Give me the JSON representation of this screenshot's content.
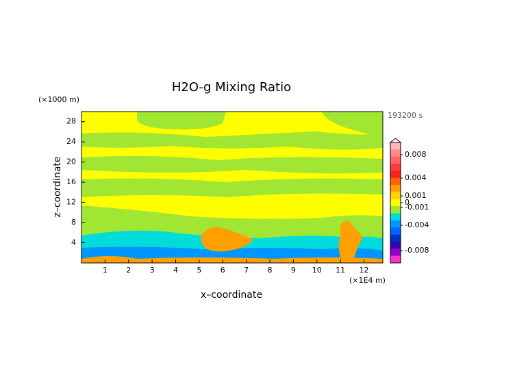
{
  "chart_data": {
    "type": "contour",
    "title": "H2O-g Mixing Ratio",
    "time_label": "193200 s",
    "x_label": "x–coordinate",
    "y_label": "z–coordinate",
    "x_unit": "(×1E4 m)",
    "y_unit": "(×1000 m)",
    "xlim": [
      0,
      12.8
    ],
    "ylim": [
      0,
      30
    ],
    "xticks": [
      1,
      2,
      3,
      4,
      5,
      6,
      7,
      8,
      9,
      10,
      11,
      12
    ],
    "yticks": [
      4,
      8,
      12,
      16,
      20,
      24,
      28
    ],
    "colorbar": {
      "colors": [
        "#ffb4b4",
        "#ff8c8c",
        "#ff6464",
        "#ff3c3c",
        "#ff1e1e",
        "#ff6400",
        "#ffa000",
        "#ffd200",
        "#ffff00",
        "#a0e632",
        "#00dcdc",
        "#0096ff",
        "#0064ff",
        "#0032c8",
        "#3c00b4",
        "#9600c8",
        "#ff32c8"
      ],
      "ticks": [
        0.008,
        0.004,
        0.001,
        0,
        -0.001,
        -0.004,
        -0.008
      ]
    }
  }
}
